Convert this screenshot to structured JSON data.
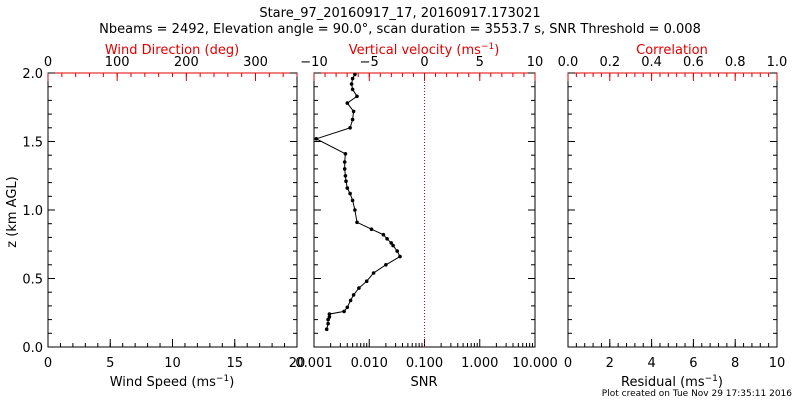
{
  "title": {
    "line1": "Stare_97_20160917_17, 20160917.173021",
    "line2": "Nbeams = 2492, Elevation angle = 90.0°, scan duration = 3553.7 s, SNR Threshold = 0.008"
  },
  "footer": "Plot created on Tue Nov 29 17:35:11 2016",
  "colors": {
    "accent": "#e00000",
    "primary": "#000000"
  },
  "chart_data": [
    {
      "type": "line",
      "panel": "left",
      "ylabel": "z (km AGL)",
      "ylim": [
        0.0,
        2.0
      ],
      "yticks": [
        "0.0",
        "0.5",
        "1.0",
        "1.5",
        "2.0"
      ],
      "xlabel_bottom": "Wind Speed (ms",
      "xlabel_bottom_sup": "−1",
      "xlabel_bottom_close": ")",
      "xlim_bottom": [
        0,
        20
      ],
      "xticks_bottom": [
        "0",
        "5",
        "10",
        "15",
        "20"
      ],
      "xlabel_top": "Wind Direction (deg)",
      "xlim_top": [
        0,
        360
      ],
      "xticks_top": [
        "0",
        "100",
        "200",
        "300"
      ],
      "series": []
    },
    {
      "type": "line",
      "panel": "middle",
      "xlabel_bottom": "SNR",
      "xscale_bottom": "log",
      "xlim_bottom": [
        0.001,
        10
      ],
      "xticks_bottom": [
        "0.001",
        "0.010",
        "0.100",
        "1.000",
        "10.000"
      ],
      "xlabel_top": "Vertical velocity (ms",
      "xlabel_top_sup": "−1",
      "xlabel_top_close": ")",
      "xlim_top": [
        -10,
        10
      ],
      "xticks_top": [
        "−10",
        "−5",
        "0",
        "5",
        "10"
      ],
      "ylim": [
        0.0,
        2.0
      ],
      "reference_line": {
        "axis": "SNR",
        "value": 0.1,
        "style": "dotted",
        "color": "#e00000"
      },
      "series": [
        {
          "axis": "SNR",
          "points": [
            [
              0.0017,
              0.13
            ],
            [
              0.0018,
              0.17
            ],
            [
              0.0018,
              0.2
            ],
            [
              0.0019,
              0.22
            ],
            [
              0.0019,
              0.24
            ],
            [
              0.0035,
              0.26
            ],
            [
              0.004,
              0.29
            ],
            [
              0.0046,
              0.34
            ],
            [
              0.0052,
              0.38
            ],
            [
              0.0065,
              0.43
            ],
            [
              0.009,
              0.48
            ],
            [
              0.012,
              0.54
            ],
            [
              0.02,
              0.6
            ],
            [
              0.036,
              0.66
            ],
            [
              0.032,
              0.7
            ],
            [
              0.027,
              0.74
            ],
            [
              0.025,
              0.76
            ],
            [
              0.021,
              0.79
            ],
            [
              0.018,
              0.82
            ],
            [
              0.011,
              0.86
            ],
            [
              0.006,
              0.91
            ],
            [
              0.0055,
              1.0
            ],
            [
              0.005,
              1.07
            ],
            [
              0.0045,
              1.12
            ],
            [
              0.004,
              1.16
            ],
            [
              0.0038,
              1.21
            ],
            [
              0.0037,
              1.25
            ],
            [
              0.0036,
              1.3
            ],
            [
              0.0036,
              1.35
            ],
            [
              0.0037,
              1.41
            ],
            [
              0.0011,
              1.52
            ],
            [
              0.0045,
              1.6
            ],
            [
              0.005,
              1.66
            ],
            [
              0.0052,
              1.72
            ],
            [
              0.004,
              1.78
            ],
            [
              0.006,
              1.83
            ],
            [
              0.005,
              1.88
            ],
            [
              0.0048,
              1.92
            ],
            [
              0.005,
              1.96
            ],
            [
              0.0055,
              1.99
            ]
          ]
        }
      ]
    },
    {
      "type": "line",
      "panel": "right",
      "xlabel_bottom": "Residual (ms",
      "xlabel_bottom_sup": "−1",
      "xlabel_bottom_close": ")",
      "xlim_bottom": [
        0,
        10
      ],
      "xticks_bottom": [
        "0",
        "2",
        "4",
        "6",
        "8",
        "10"
      ],
      "xlabel_top": "Correlation",
      "xlim_top": [
        0.0,
        1.0
      ],
      "xticks_top": [
        "0.0",
        "0.2",
        "0.4",
        "0.6",
        "0.8",
        "1.0"
      ],
      "ylim": [
        0.0,
        2.0
      ],
      "series": []
    }
  ]
}
